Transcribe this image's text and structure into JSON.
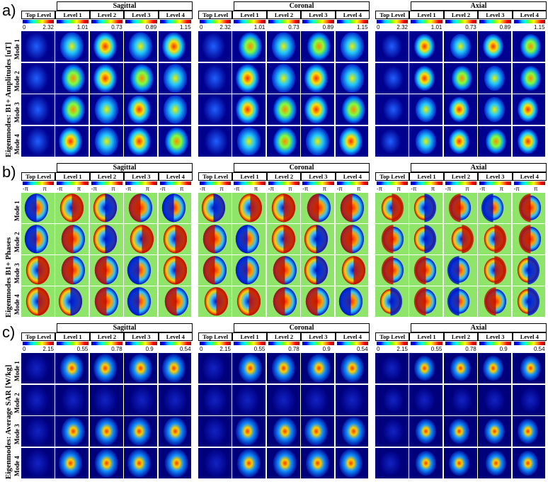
{
  "panels": [
    {
      "letter": "a)",
      "ylabel": "Eigenmodes: B1+ Amplitudes [uT]",
      "kind": "amp",
      "views": [
        {
          "title": "Sagittal",
          "levels": [
            "Top Level",
            "Level 1",
            "Level 2",
            "Level 3",
            "Level 4"
          ],
          "ticks": [
            [
              "0",
              "2.32"
            ],
            [
              "",
              "1.01"
            ],
            [
              "",
              "0.73"
            ],
            [
              "",
              "0.89"
            ],
            [
              "",
              "1.15"
            ]
          ]
        },
        {
          "title": "Coronal",
          "levels": [
            "Top Level",
            "Level 1",
            "Level 2",
            "Level 3",
            "Level 4"
          ],
          "ticks": [
            [
              "0",
              "2.32"
            ],
            [
              "",
              "1.01"
            ],
            [
              "",
              "0.73"
            ],
            [
              "",
              "0.89"
            ],
            [
              "",
              "1.15"
            ]
          ]
        },
        {
          "title": "Axial",
          "levels": [
            "Top Level",
            "Level 1",
            "Level 2",
            "Level 3",
            "Level 4"
          ],
          "ticks": [
            [
              "0",
              "2.32"
            ],
            [
              "",
              "1.01"
            ],
            [
              "",
              "0.73"
            ],
            [
              "",
              "0.89"
            ],
            [
              "",
              "1.15"
            ]
          ]
        }
      ],
      "modes": [
        "Mode 1",
        "Mode 2",
        "Mode 3",
        "Mode 4"
      ]
    },
    {
      "letter": "b)",
      "ylabel": "Eigenmodes B1+ Phases",
      "kind": "phase",
      "views": [
        {
          "title": "Sagittal",
          "levels": [
            "Top Level",
            "Level 1",
            "Level 2",
            "Level 3",
            "Level 4"
          ],
          "ticks": [
            [
              "-π",
              "π"
            ],
            [
              "-π",
              "π"
            ],
            [
              "-π",
              "π"
            ],
            [
              "-π",
              "π"
            ],
            [
              "-π",
              "π"
            ]
          ]
        },
        {
          "title": "Coronal",
          "levels": [
            "Top Level",
            "Level 1",
            "Level 2",
            "Level 3",
            "Level 4"
          ],
          "ticks": [
            [
              "-π",
              "π"
            ],
            [
              "-π",
              "π"
            ],
            [
              "-π",
              "π"
            ],
            [
              "-π",
              "π"
            ],
            [
              "-π",
              "π"
            ]
          ]
        },
        {
          "title": "Axial",
          "levels": [
            "Top Level",
            "Level 1",
            "Level 2",
            "Level 3",
            "Level 4"
          ],
          "ticks": [
            [
              "-π",
              "π"
            ],
            [
              "-π",
              "π"
            ],
            [
              "-π",
              "π"
            ],
            [
              "-π",
              "π"
            ],
            [
              "-π",
              "π"
            ]
          ]
        }
      ],
      "modes": [
        "Mode 1",
        "Mode 2",
        "Mode 3",
        "Mode 4"
      ]
    },
    {
      "letter": "c)",
      "ylabel": "Eigenmodes: Average SAR [W/kg]",
      "kind": "sar",
      "views": [
        {
          "title": "Sagittal",
          "levels": [
            "Top Level",
            "Level 1",
            "Level 2",
            "Level 3",
            "Level 4"
          ],
          "ticks": [
            [
              "0",
              "2.15"
            ],
            [
              "",
              "0.55"
            ],
            [
              "",
              "0.78"
            ],
            [
              "",
              "0.9"
            ],
            [
              "",
              "0.54"
            ]
          ]
        },
        {
          "title": "Coronal",
          "levels": [
            "Top Level",
            "Level 1",
            "Level 2",
            "Level 3",
            "Level 4"
          ],
          "ticks": [
            [
              "0",
              "2.15"
            ],
            [
              "",
              "0.55"
            ],
            [
              "",
              "0.78"
            ],
            [
              "",
              "0.9"
            ],
            [
              "",
              "0.54"
            ]
          ]
        },
        {
          "title": "Axial",
          "levels": [
            "Top Level",
            "Level 1",
            "Level 2",
            "Level 3",
            "Level 4"
          ],
          "ticks": [
            [
              "0",
              "2.15"
            ],
            [
              "",
              "0.55"
            ],
            [
              "",
              "0.78"
            ],
            [
              "",
              "0.9"
            ],
            [
              "",
              "0.54"
            ]
          ]
        }
      ],
      "modes": [
        "Mode 1",
        "Mode 2",
        "Mode 3",
        "Mode 4"
      ]
    }
  ],
  "colors": {
    "amp_bg": "#00008f",
    "phase_bg": "#8fe46a",
    "sar_bg": "#00007a"
  }
}
